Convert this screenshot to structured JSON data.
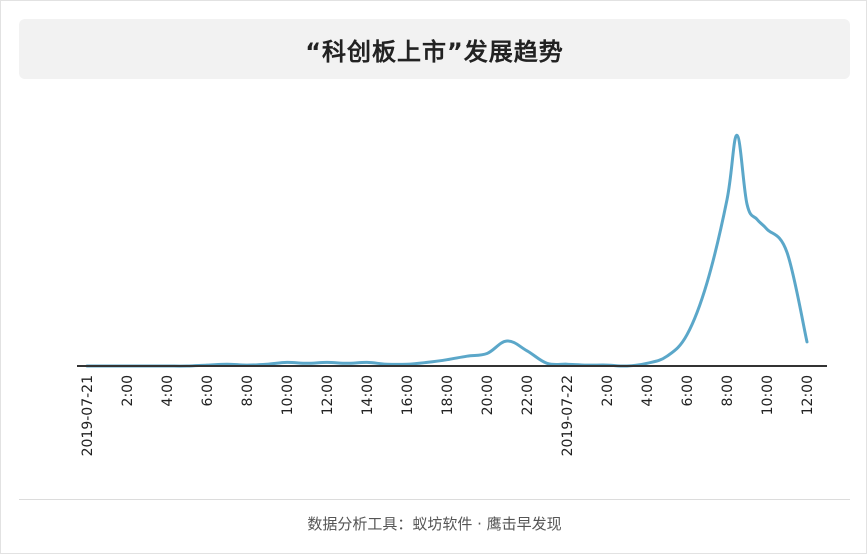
{
  "chart_data": {
    "type": "line",
    "title": "“科创板上市”发展趋势",
    "xlabel": "",
    "ylabel": "",
    "tick_labels": [
      "2019-07-21",
      "2:00",
      "4:00",
      "6:00",
      "8:00",
      "10:00",
      "12:00",
      "14:00",
      "16:00",
      "18:00",
      "20:00",
      "22:00",
      "2019-07-22",
      "2:00",
      "4:00",
      "6:00",
      "8:00",
      "10:00",
      "12:00"
    ],
    "x_hours": [
      0,
      1,
      2,
      3,
      4,
      5,
      6,
      7,
      8,
      9,
      10,
      11,
      12,
      13,
      14,
      15,
      16,
      17,
      18,
      19,
      20,
      21,
      22,
      23,
      24,
      25,
      26,
      27,
      28,
      29,
      30,
      31,
      32,
      32.5,
      33,
      33.5,
      34,
      35,
      36
    ],
    "values": [
      0,
      0,
      0,
      0,
      0,
      0,
      1,
      2,
      1,
      2,
      4,
      3,
      4,
      3,
      4,
      2,
      2,
      4,
      7,
      11,
      14,
      28,
      17,
      3,
      2,
      1,
      1,
      0,
      3,
      11,
      35,
      93,
      186,
      258,
      181,
      164,
      153,
      127,
      27
    ],
    "ylim": [
      0,
      265
    ],
    "grid": false,
    "colors": {
      "line": "#5ba7c9",
      "axis": "#333333"
    }
  },
  "footer": {
    "source": "数据分析工具：蚁坊软件 · 鹰击早发现"
  }
}
